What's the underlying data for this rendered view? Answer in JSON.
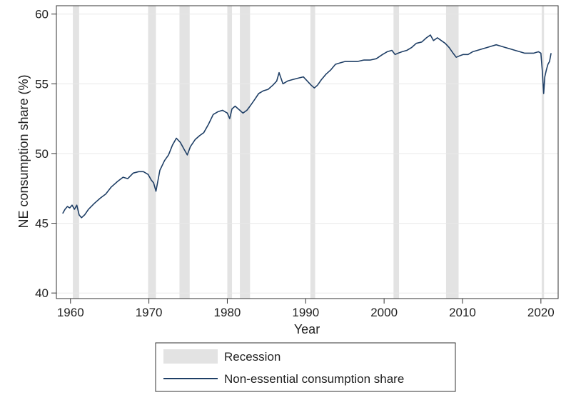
{
  "chart_data": {
    "type": "line",
    "title": "",
    "xlabel": "Year",
    "ylabel": "NE consumption share (%)",
    "xlim": [
      1958.2,
      2022.2
    ],
    "ylim": [
      39.6,
      60.6
    ],
    "x_ticks": [
      1960,
      1970,
      1980,
      1990,
      2000,
      2010,
      2020
    ],
    "x_tick_labels": [
      "1960",
      "1970",
      "1980",
      "1990",
      "2000",
      "2010",
      "2020"
    ],
    "y_ticks": [
      40,
      45,
      50,
      55,
      60
    ],
    "y_tick_labels": [
      "40",
      "45",
      "50",
      "55",
      "60"
    ],
    "grid": "horizontal",
    "legend_position": "bottom",
    "colors": {
      "line": "#1f3f66",
      "recession": "#e3e3e3",
      "grid": "#e8e8e8",
      "axis": "#333333"
    },
    "recessions": [
      {
        "start": 1960.3,
        "end": 1961.1
      },
      {
        "start": 1969.9,
        "end": 1970.9
      },
      {
        "start": 1973.9,
        "end": 1975.2
      },
      {
        "start": 1980.0,
        "end": 1980.6
      },
      {
        "start": 1981.6,
        "end": 1982.9
      },
      {
        "start": 1990.6,
        "end": 1991.2
      },
      {
        "start": 2001.2,
        "end": 2001.9
      },
      {
        "start": 2007.9,
        "end": 2009.5
      },
      {
        "start": 2020.1,
        "end": 2020.4
      }
    ],
    "series": [
      {
        "name": "Non-essential consumption share",
        "x": [
          1959.0,
          1959.3,
          1959.6,
          1959.9,
          1960.2,
          1960.5,
          1960.8,
          1961.1,
          1961.4,
          1961.8,
          1962.3,
          1963.0,
          1963.8,
          1964.5,
          1965.2,
          1966.0,
          1966.7,
          1967.3,
          1968.0,
          1968.7,
          1969.3,
          1969.9,
          1970.3,
          1970.6,
          1970.9,
          1971.4,
          1972.0,
          1972.5,
          1973.0,
          1973.5,
          1974.0,
          1974.5,
          1974.9,
          1975.3,
          1975.9,
          1976.5,
          1977.0,
          1977.6,
          1978.2,
          1978.8,
          1979.4,
          1980.0,
          1980.3,
          1980.6,
          1981.0,
          1981.6,
          1982.0,
          1982.5,
          1982.9,
          1983.4,
          1984.0,
          1984.6,
          1985.2,
          1985.8,
          1986.3,
          1986.6,
          1987.1,
          1987.7,
          1988.3,
          1989.0,
          1989.7,
          1990.2,
          1990.7,
          1991.1,
          1991.5,
          1992.0,
          1992.6,
          1993.2,
          1993.8,
          1994.4,
          1995.0,
          1995.8,
          1996.6,
          1997.4,
          1998.2,
          1999.0,
          1999.8,
          2000.4,
          2001.0,
          2001.4,
          2001.8,
          2002.3,
          2002.9,
          2003.5,
          2004.1,
          2004.8,
          2005.4,
          2005.9,
          2006.3,
          2006.8,
          2007.3,
          2007.8,
          2008.3,
          2008.8,
          2009.2,
          2009.6,
          2010.1,
          2010.7,
          2011.3,
          2011.9,
          2012.5,
          2013.1,
          2013.7,
          2014.3,
          2014.9,
          2015.5,
          2016.1,
          2016.7,
          2017.3,
          2017.9,
          2018.5,
          2019.1,
          2019.7,
          2020.0,
          2020.2,
          2020.35,
          2020.5,
          2020.7,
          2020.9,
          2021.1,
          2021.3
        ],
        "y": [
          45.7,
          46.0,
          46.2,
          46.1,
          46.3,
          46.0,
          46.3,
          45.6,
          45.4,
          45.6,
          46.0,
          46.4,
          46.8,
          47.1,
          47.6,
          48.0,
          48.3,
          48.2,
          48.6,
          48.7,
          48.7,
          48.5,
          48.1,
          47.9,
          47.3,
          48.8,
          49.5,
          49.9,
          50.6,
          51.1,
          50.8,
          50.3,
          49.9,
          50.5,
          51.0,
          51.3,
          51.5,
          52.1,
          52.8,
          53.0,
          53.1,
          52.9,
          52.5,
          53.2,
          53.4,
          53.1,
          52.9,
          53.1,
          53.4,
          53.8,
          54.3,
          54.5,
          54.6,
          54.9,
          55.2,
          55.8,
          55.0,
          55.2,
          55.3,
          55.4,
          55.5,
          55.2,
          54.9,
          54.7,
          54.9,
          55.3,
          55.7,
          56.0,
          56.4,
          56.5,
          56.6,
          56.6,
          56.6,
          56.7,
          56.7,
          56.8,
          57.1,
          57.3,
          57.4,
          57.1,
          57.2,
          57.3,
          57.4,
          57.6,
          57.9,
          58.0,
          58.3,
          58.5,
          58.1,
          58.3,
          58.1,
          57.9,
          57.6,
          57.2,
          56.9,
          57.0,
          57.1,
          57.1,
          57.3,
          57.4,
          57.5,
          57.6,
          57.7,
          57.8,
          57.7,
          57.6,
          57.5,
          57.4,
          57.3,
          57.2,
          57.2,
          57.2,
          57.3,
          57.2,
          55.8,
          54.3,
          55.5,
          56.0,
          56.4,
          56.6,
          57.2
        ]
      }
    ],
    "legend": {
      "recession_label": "Recession",
      "line_label": "Non-essential consumption share"
    }
  }
}
